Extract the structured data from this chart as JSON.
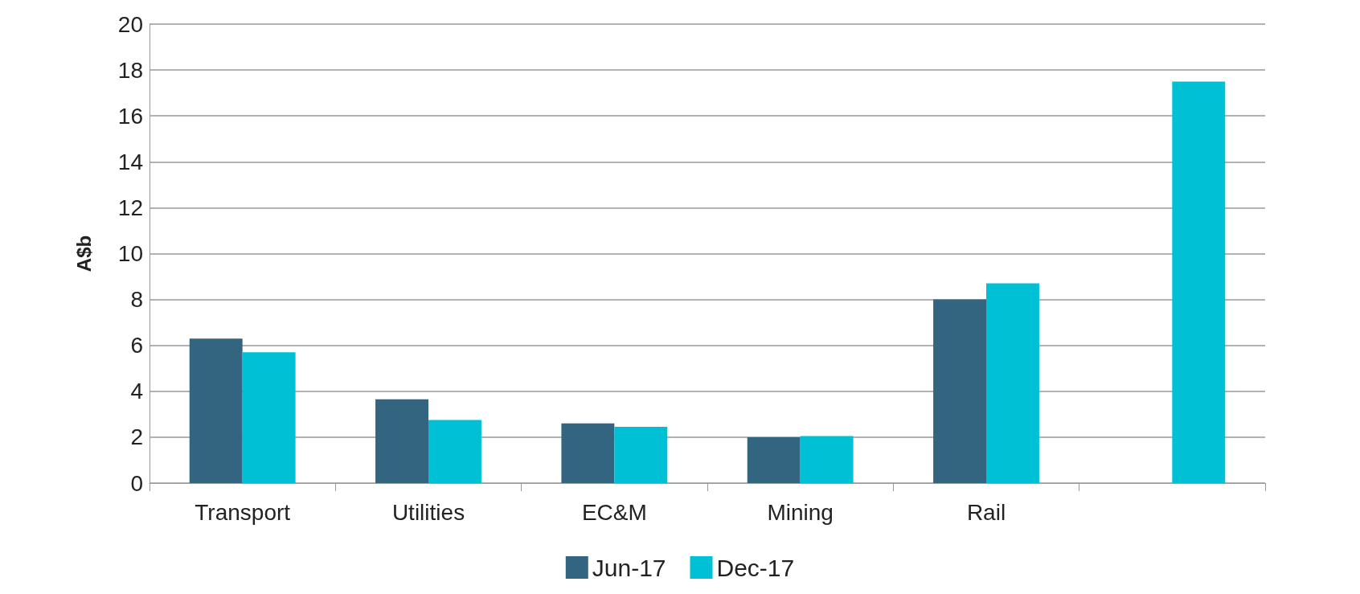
{
  "chart_data": {
    "type": "bar",
    "ylabel": "A$b",
    "categories": [
      "Transport",
      "Utilities",
      "EC&M",
      "Mining",
      "Rail",
      null
    ],
    "series": [
      {
        "name": "Jun-17",
        "color": "#336580",
        "values": [
          6.3,
          3.65,
          2.6,
          2.0,
          8.0,
          null
        ]
      },
      {
        "name": "Dec-17",
        "color": "#00c0d5",
        "values": [
          5.7,
          2.75,
          2.45,
          2.05,
          8.7,
          17.5
        ]
      }
    ],
    "ylim": [
      0,
      20
    ],
    "yticks": [
      0,
      2,
      4,
      6,
      8,
      10,
      12,
      14,
      16,
      18,
      20
    ],
    "grid": "y",
    "legend": "bottom"
  }
}
